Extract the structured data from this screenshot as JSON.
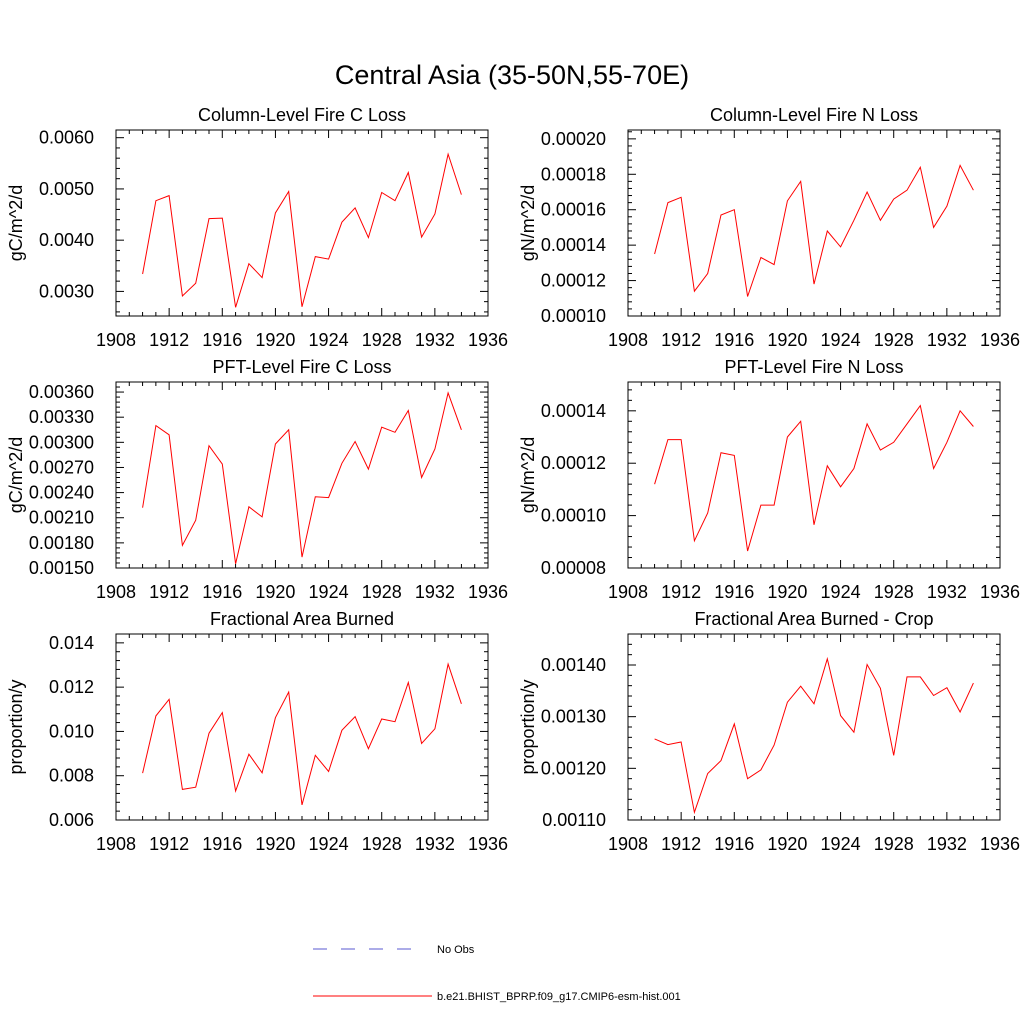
{
  "figure": {
    "title": "Central Asia (35-50N,55-70E)",
    "colors": {
      "model": "#ff0000",
      "obs": "#5a5ad0",
      "axis": "#000000"
    }
  },
  "legend": {
    "items": [
      {
        "label": "No Obs",
        "style": "dashed",
        "color": "#5a5ad0"
      },
      {
        "label": "b.e21.BHIST_BPRP.f09_g17.CMIP6-esm-hist.001",
        "style": "solid",
        "color": "#ff0000"
      }
    ]
  },
  "chart_data": [
    {
      "type": "line",
      "title": "Column-Level Fire C Loss",
      "ylabel": "gC/m^2/d",
      "xlim": [
        1908,
        1936
      ],
      "ylim": [
        0.00252,
        0.00615
      ],
      "x_ticks": [
        "1908",
        "1912",
        "1916",
        "1920",
        "1924",
        "1928",
        "1932",
        "1936"
      ],
      "y_ticks": [
        "0.0030",
        "0.0040",
        "0.0050",
        "0.0060"
      ],
      "x": [
        1910,
        1911,
        1912,
        1913,
        1914,
        1915,
        1916,
        1917,
        1918,
        1919,
        1920,
        1921,
        1922,
        1923,
        1924,
        1925,
        1926,
        1927,
        1928,
        1929,
        1930,
        1931,
        1932,
        1933,
        1934
      ],
      "series": [
        {
          "values": [
            0.00334,
            0.00477,
            0.00487,
            0.00291,
            0.00316,
            0.00442,
            0.00443,
            0.00269,
            0.00354,
            0.00327,
            0.00453,
            0.00495,
            0.0027,
            0.00368,
            0.00363,
            0.00435,
            0.00463,
            0.00405,
            0.00493,
            0.00477,
            0.00532,
            0.00406,
            0.00451,
            0.00568,
            0.00489
          ]
        }
      ]
    },
    {
      "type": "line",
      "title": "Column-Level Fire N Loss",
      "ylabel": "gN/m^2/d",
      "xlim": [
        1908,
        1936
      ],
      "ylim": [
        0.0001,
        0.000205
      ],
      "x_ticks": [
        "1908",
        "1912",
        "1916",
        "1920",
        "1924",
        "1928",
        "1932",
        "1936"
      ],
      "y_ticks": [
        "0.00010",
        "0.00012",
        "0.00014",
        "0.00016",
        "0.00018",
        "0.00020"
      ],
      "x": [
        1910,
        1911,
        1912,
        1913,
        1914,
        1915,
        1916,
        1917,
        1918,
        1919,
        1920,
        1921,
        1922,
        1923,
        1924,
        1925,
        1926,
        1927,
        1928,
        1929,
        1930,
        1931,
        1932,
        1933,
        1934
      ],
      "series": [
        {
          "values": [
            0.000135,
            0.000164,
            0.000167,
            0.000114,
            0.000124,
            0.000157,
            0.00016,
            0.000111,
            0.000133,
            0.000129,
            0.000165,
            0.000176,
            0.000118,
            0.000148,
            0.000139,
            0.000154,
            0.00017,
            0.000154,
            0.000166,
            0.000171,
            0.000184,
            0.00015,
            0.000162,
            0.000185,
            0.000171
          ]
        }
      ]
    },
    {
      "type": "line",
      "title": "PFT-Level Fire C Loss",
      "ylabel": "gC/m^2/d",
      "xlim": [
        1908,
        1936
      ],
      "ylim": [
        0.0015,
        0.00372
      ],
      "x_ticks": [
        "1908",
        "1912",
        "1916",
        "1920",
        "1924",
        "1928",
        "1932",
        "1936"
      ],
      "y_ticks": [
        "0.00150",
        "0.00180",
        "0.00210",
        "0.00240",
        "0.00270",
        "0.00300",
        "0.00330",
        "0.00360"
      ],
      "x": [
        1910,
        1911,
        1912,
        1913,
        1914,
        1915,
        1916,
        1917,
        1918,
        1919,
        1920,
        1921,
        1922,
        1923,
        1924,
        1925,
        1926,
        1927,
        1928,
        1929,
        1930,
        1931,
        1932,
        1933,
        1934
      ],
      "series": [
        {
          "values": [
            0.00222,
            0.0032,
            0.00309,
            0.00177,
            0.00207,
            0.00296,
            0.00274,
            0.00155,
            0.00223,
            0.00211,
            0.00298,
            0.00315,
            0.00163,
            0.00235,
            0.00234,
            0.00275,
            0.00301,
            0.00268,
            0.00318,
            0.00312,
            0.00338,
            0.00258,
            0.00292,
            0.00359,
            0.00315
          ]
        }
      ]
    },
    {
      "type": "line",
      "title": "PFT-Level Fire N Loss",
      "ylabel": "gN/m^2/d",
      "xlim": [
        1908,
        1936
      ],
      "ylim": [
        8e-05,
        0.000151
      ],
      "x_ticks": [
        "1908",
        "1912",
        "1916",
        "1920",
        "1924",
        "1928",
        "1932",
        "1936"
      ],
      "y_ticks": [
        "0.00008",
        "0.00010",
        "0.00012",
        "0.00014"
      ],
      "x": [
        1910,
        1911,
        1912,
        1913,
        1914,
        1915,
        1916,
        1917,
        1918,
        1919,
        1920,
        1921,
        1922,
        1923,
        1924,
        1925,
        1926,
        1927,
        1928,
        1929,
        1930,
        1931,
        1932,
        1933,
        1934
      ],
      "series": [
        {
          "values": [
            0.000112,
            0.000129,
            0.000129,
            9.04e-05,
            0.000101,
            0.000124,
            0.000123,
            8.65e-05,
            0.000104,
            0.000104,
            0.00013,
            0.000136,
            9.65e-05,
            0.000119,
            0.000111,
            0.000118,
            0.000135,
            0.000125,
            0.000128,
            0.000135,
            0.000142,
            0.000118,
            0.000128,
            0.00014,
            0.000134
          ]
        }
      ]
    },
    {
      "type": "line",
      "title": "Fractional Area Burned",
      "ylabel": "proportion/y",
      "xlim": [
        1908,
        1936
      ],
      "ylim": [
        0.006,
        0.0144
      ],
      "x_ticks": [
        "1908",
        "1912",
        "1916",
        "1920",
        "1924",
        "1928",
        "1932",
        "1936"
      ],
      "y_ticks": [
        "0.006",
        "0.008",
        "0.010",
        "0.012",
        "0.014"
      ],
      "x": [
        1910,
        1911,
        1912,
        1913,
        1914,
        1915,
        1916,
        1917,
        1918,
        1919,
        1920,
        1921,
        1922,
        1923,
        1924,
        1925,
        1926,
        1927,
        1928,
        1929,
        1930,
        1931,
        1932,
        1933,
        1934
      ],
      "series": [
        {
          "values": [
            0.00812,
            0.0107,
            0.01145,
            0.00738,
            0.00748,
            0.00992,
            0.01085,
            0.00731,
            0.00897,
            0.00813,
            0.01062,
            0.01178,
            0.00668,
            0.00892,
            0.00819,
            0.01005,
            0.01067,
            0.00922,
            0.01056,
            0.01044,
            0.01221,
            0.00946,
            0.01012,
            0.01304,
            0.01125
          ]
        }
      ]
    },
    {
      "type": "line",
      "title": "Fractional Area Burned - Crop",
      "ylabel": "proportion/y",
      "xlim": [
        1908,
        1936
      ],
      "ylim": [
        0.0011,
        0.00146
      ],
      "x_ticks": [
        "1908",
        "1912",
        "1916",
        "1920",
        "1924",
        "1928",
        "1932",
        "1936"
      ],
      "y_ticks": [
        "0.00110",
        "0.00120",
        "0.00130",
        "0.00140"
      ],
      "x": [
        1910,
        1911,
        1912,
        1913,
        1914,
        1915,
        1916,
        1917,
        1918,
        1919,
        1920,
        1921,
        1922,
        1923,
        1924,
        1925,
        1926,
        1927,
        1928,
        1929,
        1930,
        1931,
        1932,
        1933,
        1934
      ],
      "series": [
        {
          "values": [
            0.001257,
            0.001246,
            0.001251,
            0.001115,
            0.00119,
            0.001215,
            0.001286,
            0.00118,
            0.001197,
            0.001245,
            0.001328,
            0.001359,
            0.001325,
            0.001412,
            0.001302,
            0.00127,
            0.001401,
            0.001355,
            0.001225,
            0.001377,
            0.001377,
            0.001341,
            0.001356,
            0.001309,
            0.001365
          ]
        }
      ]
    }
  ]
}
